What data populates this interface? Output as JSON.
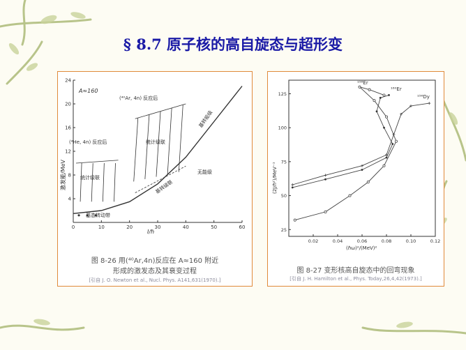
{
  "slide": {
    "title": "§ 8.7 原子核的高自旋态与超形变",
    "colors": {
      "title": "#1a1aa6",
      "frame": "#e08a3a",
      "vine": "#b8c48a"
    }
  },
  "figure_left": {
    "caption_line1": "图 8-26   用(⁴⁰Ar,4n)反应在 A≈160 附近",
    "caption_line2": "形成的激发态及其衰变过程",
    "reference": "[引自 J. O. Newton et al., Nucl. Phys. A141,631(1970).]",
    "labels": {
      "mass": "A≈160",
      "reaction_ar": "(⁴⁰Ar, 4n) 反应后",
      "reaction_he": "(⁴He, 4n) 反应后",
      "stat_cascade_1": "统计级联",
      "stat_cascade_2": "统计级联",
      "yrast_line": "基转能级",
      "yrast_cascade": "基转级联",
      "no_levels": "无能级",
      "ground_band": "基态转动带"
    },
    "chart_data": {
      "type": "line",
      "xlabel": "I/ℏ",
      "ylabel": "激发能/MeV",
      "xlim": [
        0,
        60
      ],
      "ylim": [
        0,
        24
      ],
      "xticks": [
        0,
        10,
        20,
        30,
        40,
        50,
        60
      ],
      "yticks": [
        4,
        8,
        12,
        16,
        20,
        24
      ],
      "series": [
        {
          "x": [
            0,
            10,
            20,
            30,
            40,
            50,
            60
          ],
          "y": [
            1.5,
            2.0,
            3.5,
            6.5,
            11,
            17,
            23
          ]
        }
      ]
    }
  },
  "figure_right": {
    "caption": "图 8-27   变形核高自旋态中的回弯现象",
    "reference": "[引自 J. H. Hamilton et al., Phys. Today,26,4,42(1973).]",
    "labels": {
      "er158": "¹⁵⁸Er",
      "er160": "¹⁶⁰Er",
      "dy156": "¹⁵⁶Dy"
    },
    "chart_data": {
      "type": "line",
      "xlabel": "(ℏω)²/(MeV)²",
      "ylabel": "(2J/ℏ²)/MeV⁻¹",
      "xlim": [
        0,
        0.12
      ],
      "ylim": [
        20,
        135
      ],
      "xticks": [
        "0.02",
        "0.04",
        "0.06",
        "0.08",
        "0.10",
        "0.12"
      ],
      "yticks": [
        25,
        50,
        75,
        100,
        125
      ],
      "series": [
        {
          "name": "¹⁵⁸Er",
          "x": [
            0.005,
            0.03,
            0.05,
            0.065,
            0.078,
            0.088,
            0.08,
            0.07,
            0.058,
            0.066,
            0.078
          ],
          "y": [
            32,
            38,
            50,
            60,
            72,
            90,
            108,
            120,
            130,
            128,
            124
          ]
        },
        {
          "name": "¹⁶⁰Er",
          "x": [
            0.003,
            0.03,
            0.06,
            0.08,
            0.085,
            0.078,
            0.072,
            0.075,
            0.082
          ],
          "y": [
            56,
            62,
            69,
            78,
            88,
            100,
            112,
            122,
            124
          ]
        },
        {
          "name": "¹⁵⁶Dy",
          "x": [
            0.003,
            0.03,
            0.06,
            0.08,
            0.086,
            0.092,
            0.1,
            0.115
          ],
          "y": [
            58,
            65,
            72,
            80,
            95,
            110,
            116,
            118
          ]
        }
      ]
    }
  }
}
